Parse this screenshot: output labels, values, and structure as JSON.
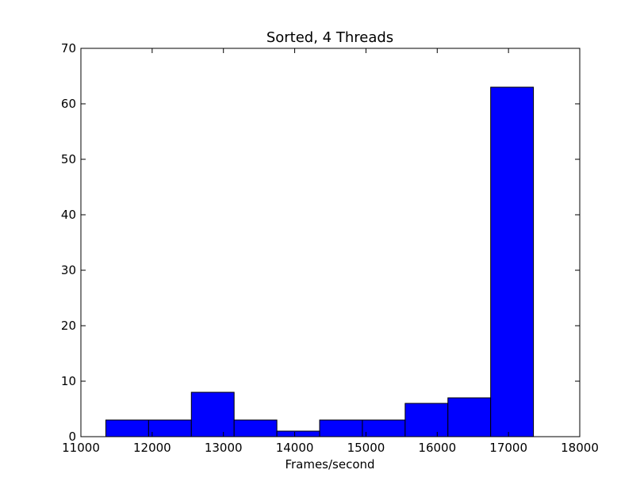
{
  "chart_data": {
    "type": "bar",
    "title": "Sorted, 4 Threads",
    "xlabel": "Frames/second",
    "ylabel": "",
    "xlim": [
      11000,
      18000
    ],
    "ylim": [
      0,
      70
    ],
    "xticks": [
      11000,
      12000,
      13000,
      14000,
      15000,
      16000,
      17000,
      18000
    ],
    "yticks": [
      0,
      10,
      20,
      30,
      40,
      50,
      60,
      70
    ],
    "bin_edges": [
      11350,
      11950,
      12550,
      13150,
      13750,
      14350,
      14950,
      15550,
      16150,
      16750,
      17350
    ],
    "values": [
      3,
      3,
      8,
      3,
      1,
      3,
      3,
      6,
      7,
      63
    ],
    "bar_color": "#0000ff",
    "edge_color": "#000000",
    "grid": false
  }
}
